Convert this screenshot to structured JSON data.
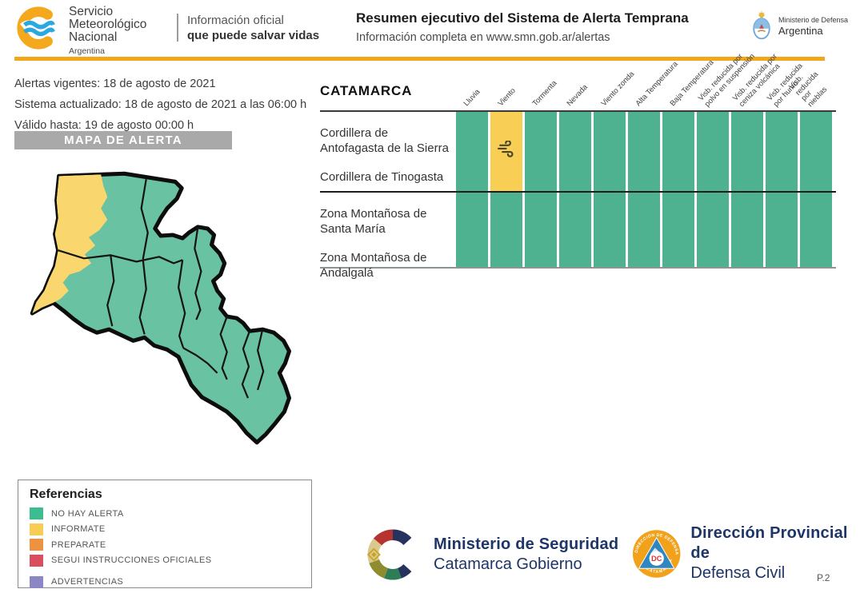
{
  "header": {
    "smn": {
      "line1": "Servicio",
      "line2": "Meteorológico",
      "line3": "Nacional",
      "country": "Argentina"
    },
    "tagline": {
      "line1": "Información oficial",
      "line2": "que puede salvar vidas"
    },
    "title": "Resumen ejecutivo del Sistema de Alerta Temprana",
    "subtitle": "Información completa en www.smn.gob.ar/alertas",
    "defensa": {
      "line1": "Ministerio de Defensa",
      "line2": "Argentina"
    }
  },
  "alert_info": {
    "vigentes": "Alertas vigentes: 18 de agosto de 2021",
    "actualizado": "Sistema actualizado: 18 de agosto de 2021 a las 06:00 h",
    "valido": "Válido hasta: 19 de agosto 00:00 h"
  },
  "map_banner": "MAPA DE ALERTA",
  "table": {
    "region": "CATAMARCA",
    "columns": [
      "Lluvia",
      "Viento",
      "Tormenta",
      "Nevada",
      "Viento zonda",
      "Alta Temperatura",
      "Baja Temperatura",
      "Visb. reducida por\npolvo en suspensión",
      "Visb. reducida por\nceniza volcánica",
      "Visb. reducida\npor humo",
      "Visb. reducida\npor nieblas"
    ],
    "row_groups": [
      {
        "labels": [
          "Cordillera de Antofagasta de la Sierra",
          "Cordillera de Tinogasta"
        ],
        "cells": [
          {
            "status": "no_alert"
          },
          {
            "status": "informate",
            "icon": "wind-icon"
          },
          {
            "status": "no_alert"
          },
          {
            "status": "no_alert"
          },
          {
            "status": "no_alert"
          },
          {
            "status": "no_alert"
          },
          {
            "status": "no_alert"
          },
          {
            "status": "no_alert"
          },
          {
            "status": "no_alert"
          },
          {
            "status": "no_alert"
          },
          {
            "status": "no_alert"
          }
        ]
      },
      {
        "labels": [
          "Zona Montañosa de Santa María",
          "Zona Montañosa de Andalgalá"
        ],
        "cells": [
          {
            "status": "no_alert"
          },
          {
            "status": "no_alert"
          },
          {
            "status": "no_alert"
          },
          {
            "status": "no_alert"
          },
          {
            "status": "no_alert"
          },
          {
            "status": "no_alert"
          },
          {
            "status": "no_alert"
          },
          {
            "status": "no_alert"
          },
          {
            "status": "no_alert"
          },
          {
            "status": "no_alert"
          },
          {
            "status": "no_alert"
          }
        ]
      }
    ]
  },
  "legend": {
    "title": "Referencias",
    "items": [
      {
        "label": "NO HAY ALERTA",
        "color": "#3cbd8f"
      },
      {
        "label": "INFORMATE",
        "color": "#f7cd55"
      },
      {
        "label": "PREPARATE",
        "color": "#ee9140"
      },
      {
        "label": "SEGUI INSTRUCCIONES OFICIALES",
        "color": "#d94f5f"
      },
      {
        "label": "ADVERTENCIAS",
        "color": "#8b87c5"
      }
    ]
  },
  "footer": {
    "seguridad": {
      "line1": "Ministerio de Seguridad",
      "line2": "Catamarca Gobierno"
    },
    "defensa_civil": {
      "line1": "Dirección Provincial de",
      "line2": "Defensa Civil",
      "badge": "DC",
      "ring_top": "DIRECCIÓN DE DEFENSA CIVIL",
      "ring_bottom": "CATAMARCA"
    },
    "page": "P.2"
  },
  "colors": {
    "no_alert_green": "#3cbd8f",
    "informate_yellow": "#f7cd55",
    "cell_green": "#4eb290",
    "cell_yellow": "#f8ce54",
    "map_green": "#69c2a2",
    "map_yellow": "#f9d66e",
    "header_orange_line": "#f2a71b",
    "banner_gray": "#a9a9a9",
    "navy": "#1e3567",
    "smn_orange": "#f5a81c",
    "smn_blue": "#2aa9e0",
    "dc_orange": "#f2a11b",
    "dc_blue": "#2f86c0",
    "dc_red": "#d9322e"
  }
}
